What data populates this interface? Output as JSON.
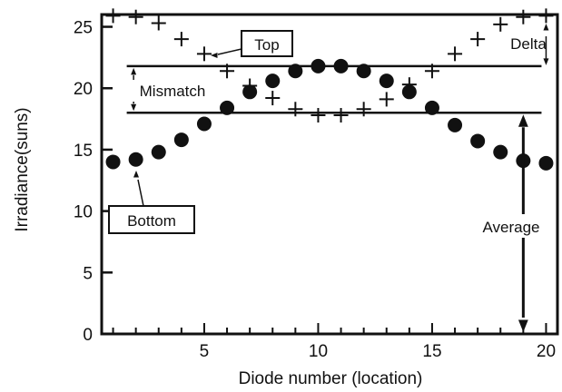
{
  "chart_data": {
    "type": "scatter",
    "xlabel": "Diode number (location)",
    "ylabel": "Irradiance(suns)",
    "xlim": [
      0.5,
      20.5
    ],
    "ylim": [
      0,
      26
    ],
    "xticks": [
      5,
      10,
      15,
      20
    ],
    "yticks": [
      0,
      5,
      10,
      15,
      20,
      25
    ],
    "grid": false,
    "series": [
      {
        "marker": "plus",
        "x": [
          1,
          2,
          3,
          4,
          5,
          6,
          7,
          8,
          9,
          10,
          11,
          12,
          13,
          14,
          15,
          16,
          17,
          18,
          19,
          20
        ],
        "y": [
          25.9,
          25.8,
          25.3,
          24.0,
          22.8,
          21.4,
          20.2,
          19.2,
          18.3,
          17.8,
          17.8,
          18.3,
          19.1,
          20.3,
          21.4,
          22.8,
          24.0,
          25.2,
          25.8,
          25.9
        ]
      },
      {
        "marker": "dot",
        "x": [
          1,
          2,
          3,
          4,
          5,
          6,
          7,
          8,
          9,
          10,
          11,
          12,
          13,
          14,
          15,
          16,
          17,
          18,
          19,
          20
        ],
        "y": [
          14.0,
          14.2,
          14.8,
          15.8,
          17.1,
          18.4,
          19.7,
          20.6,
          21.4,
          21.8,
          21.8,
          21.4,
          20.6,
          19.7,
          18.4,
          17.0,
          15.7,
          14.8,
          14.1,
          13.9
        ]
      }
    ],
    "reference_lines": [
      {
        "label": "Top",
        "y": 21.8
      },
      {
        "label": "Bottom",
        "y": 18.0
      }
    ],
    "annotations": {
      "top": "Top",
      "bottom": "Bottom",
      "mismatch": "Mismatch",
      "delta": "Delta",
      "average": "Average"
    }
  }
}
